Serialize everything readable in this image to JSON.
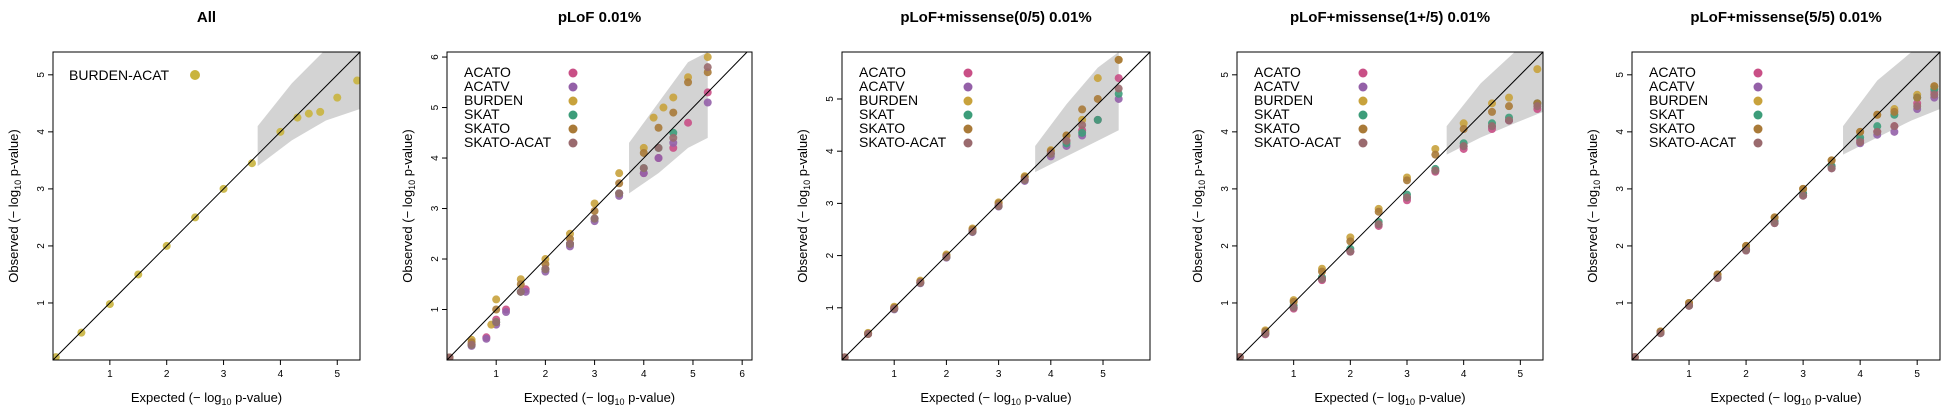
{
  "colors": {
    "ACATO": "#c94f86",
    "ACATV": "#9460a8",
    "BURDEN": "#c8a23c",
    "SKAT": "#3d9d7a",
    "SKATO": "#a97a38",
    "SKATO-ACAT": "#9a6a6e",
    "BURDEN-ACAT": "#c9b43e",
    "ci_band": "#d3d3d3",
    "diagonal": "#000000"
  },
  "chart_data": [
    {
      "type": "scatter",
      "title": "All",
      "xlabel": "Expected (− log10 p-value)",
      "ylabel": "Observed (− log10 p-value)",
      "xlim": [
        0,
        5.4
      ],
      "ylim": [
        0,
        5.4
      ],
      "xticks": [
        1,
        2,
        3,
        4,
        5
      ],
      "yticks": [
        1,
        2,
        3,
        4,
        5
      ],
      "legend": "top-left",
      "ci_band": {
        "x": [
          3.6,
          4.2,
          4.8,
          5.4
        ],
        "lower": [
          3.4,
          3.85,
          4.2,
          4.4
        ],
        "upper": [
          4.1,
          4.85,
          5.45,
          5.4
        ]
      },
      "series": [
        {
          "name": "BURDEN-ACAT",
          "x": [
            0.05,
            0.5,
            1.0,
            1.5,
            2.0,
            2.5,
            3.0,
            3.5,
            4.0,
            4.3,
            4.5,
            4.7,
            5.0,
            5.35
          ],
          "y": [
            0.05,
            0.48,
            0.98,
            1.5,
            2.0,
            2.5,
            3.0,
            3.45,
            4.0,
            4.25,
            4.32,
            4.35,
            4.6,
            4.9
          ]
        }
      ]
    },
    {
      "type": "scatter",
      "title": "pLoF 0.01%",
      "xlabel": "Expected (− log10 p-value)",
      "ylabel": "Observed (− log10 p-value)",
      "xlim": [
        0,
        6.2
      ],
      "ylim": [
        0,
        6.1
      ],
      "xticks": [
        1,
        2,
        3,
        4,
        5,
        6
      ],
      "yticks": [
        1,
        2,
        3,
        4,
        5,
        6
      ],
      "legend": "top-left",
      "ci_band": {
        "x": [
          3.7,
          4.3,
          4.9,
          5.3
        ],
        "lower": [
          3.3,
          3.7,
          4.2,
          4.4
        ],
        "upper": [
          4.3,
          5.1,
          5.9,
          6.1
        ]
      },
      "series": [
        {
          "name": "ACATO",
          "x": [
            0.05,
            0.5,
            0.8,
            1.0,
            1.2,
            1.6,
            2.0,
            2.5,
            3.0,
            3.5,
            4.0,
            4.3,
            4.6,
            4.9,
            5.3
          ],
          "y": [
            0.05,
            0.3,
            0.45,
            0.8,
            1.0,
            1.4,
            1.8,
            2.3,
            2.8,
            3.3,
            3.7,
            4.0,
            4.2,
            4.7,
            5.3
          ]
        },
        {
          "name": "ACATV",
          "x": [
            0.05,
            0.5,
            0.8,
            1.0,
            1.2,
            1.6,
            2.0,
            2.5,
            3.0,
            3.5,
            4.0,
            4.3,
            4.6,
            5.3
          ],
          "y": [
            0.05,
            0.28,
            0.42,
            0.7,
            0.95,
            1.35,
            1.75,
            2.25,
            2.75,
            3.25,
            3.7,
            4.0,
            4.3,
            5.1
          ]
        },
        {
          "name": "BURDEN",
          "x": [
            0.05,
            0.5,
            0.9,
            1.0,
            1.5,
            2.0,
            2.5,
            3.0,
            3.5,
            4.0,
            4.2,
            4.4,
            4.6,
            4.9,
            5.3
          ],
          "y": [
            0.05,
            0.4,
            0.7,
            1.2,
            1.6,
            2.0,
            2.5,
            3.1,
            3.7,
            4.2,
            4.8,
            5.0,
            5.2,
            5.6,
            6.0
          ]
        },
        {
          "name": "SKAT",
          "x": [
            0.05,
            0.5,
            1.0,
            1.5,
            2.0,
            2.5,
            3.0,
            3.5,
            4.0,
            4.3,
            4.6
          ],
          "y": [
            0.05,
            0.3,
            0.75,
            1.35,
            1.8,
            2.3,
            2.8,
            3.3,
            3.8,
            4.2,
            4.5
          ]
        },
        {
          "name": "SKATO",
          "x": [
            0.05,
            0.5,
            1.0,
            1.5,
            2.0,
            2.5,
            3.0,
            3.5,
            4.0,
            4.3,
            4.6,
            4.9,
            5.3
          ],
          "y": [
            0.05,
            0.35,
            1.0,
            1.5,
            1.9,
            2.4,
            2.95,
            3.5,
            4.1,
            4.6,
            4.9,
            5.5,
            5.7
          ]
        },
        {
          "name": "SKATO-ACAT",
          "x": [
            0.05,
            0.5,
            1.0,
            1.5,
            2.0,
            2.5,
            3.0,
            3.5,
            4.0,
            4.3,
            4.6,
            5.3
          ],
          "y": [
            0.05,
            0.3,
            0.75,
            1.35,
            1.8,
            2.3,
            2.8,
            3.3,
            3.8,
            4.2,
            4.4,
            5.8
          ]
        }
      ]
    },
    {
      "type": "scatter",
      "title": "pLoF+missense(0/5) 0.01%",
      "xlabel": "Expected (− log10 p-value)",
      "ylabel": "Observed (− log10 p-value)",
      "xlim": [
        0,
        5.9
      ],
      "ylim": [
        0,
        5.9
      ],
      "xticks": [
        1,
        2,
        3,
        4,
        5
      ],
      "yticks": [
        1,
        2,
        3,
        4,
        5
      ],
      "legend": "top-left",
      "ci_band": {
        "x": [
          3.7,
          4.3,
          4.9,
          5.3
        ],
        "lower": [
          3.6,
          3.9,
          4.2,
          4.4
        ],
        "upper": [
          4.1,
          4.9,
          5.6,
          5.9
        ]
      },
      "series": [
        {
          "name": "ACATO",
          "x": [
            0.05,
            0.5,
            1.0,
            1.5,
            2.0,
            2.5,
            3.0,
            3.5,
            4.0,
            4.3,
            4.6,
            4.9,
            5.3
          ],
          "y": [
            0.05,
            0.5,
            0.98,
            1.48,
            1.97,
            2.46,
            2.95,
            3.45,
            3.95,
            4.2,
            4.4,
            4.6,
            5.4
          ]
        },
        {
          "name": "ACATV",
          "x": [
            0.05,
            0.5,
            1.0,
            1.5,
            2.0,
            2.5,
            3.0,
            3.5,
            4.0,
            4.3,
            4.6,
            5.3
          ],
          "y": [
            0.05,
            0.5,
            0.97,
            1.47,
            1.96,
            2.45,
            2.94,
            3.43,
            3.9,
            4.1,
            4.3,
            5.0
          ]
        },
        {
          "name": "BURDEN",
          "x": [
            0.05,
            0.5,
            1.0,
            1.5,
            2.0,
            2.5,
            3.0,
            3.5,
            4.0,
            4.3,
            4.6,
            4.9,
            5.3
          ],
          "y": [
            0.05,
            0.52,
            1.02,
            1.52,
            2.02,
            2.52,
            3.02,
            3.52,
            4.02,
            4.3,
            4.6,
            5.4,
            5.75
          ]
        },
        {
          "name": "SKAT",
          "x": [
            0.05,
            0.5,
            1.0,
            1.5,
            2.0,
            2.5,
            3.0,
            3.5,
            4.0,
            4.3,
            4.6,
            4.9,
            5.3
          ],
          "y": [
            0.05,
            0.5,
            0.98,
            1.48,
            1.97,
            2.46,
            2.95,
            3.45,
            3.95,
            4.15,
            4.35,
            4.6,
            5.1
          ]
        },
        {
          "name": "SKATO",
          "x": [
            0.05,
            0.5,
            1.0,
            1.5,
            2.0,
            2.5,
            3.0,
            3.5,
            4.0,
            4.3,
            4.6,
            4.9,
            5.3
          ],
          "y": [
            0.05,
            0.5,
            1.0,
            1.5,
            2.0,
            2.5,
            3.0,
            3.5,
            4.0,
            4.3,
            4.8,
            5.0,
            5.75
          ]
        },
        {
          "name": "SKATO-ACAT",
          "x": [
            0.05,
            0.5,
            1.0,
            1.5,
            2.0,
            2.5,
            3.0,
            3.5,
            4.0,
            4.3,
            4.6,
            5.3
          ],
          "y": [
            0.05,
            0.5,
            0.98,
            1.48,
            1.97,
            2.46,
            2.95,
            3.45,
            3.95,
            4.2,
            4.5,
            5.2
          ]
        }
      ]
    },
    {
      "type": "scatter",
      "title": "pLoF+missense(1+/5) 0.01%",
      "xlabel": "Expected (− log10 p-value)",
      "ylabel": "Observed (− log10 p-value)",
      "xlim": [
        0,
        5.4
      ],
      "ylim": [
        0,
        5.4
      ],
      "xticks": [
        1,
        2,
        3,
        4,
        5
      ],
      "yticks": [
        1,
        2,
        3,
        4,
        5
      ],
      "legend": "top-left",
      "ci_band": {
        "x": [
          3.7,
          4.3,
          4.9,
          5.4
        ],
        "lower": [
          3.6,
          3.9,
          4.15,
          4.35
        ],
        "upper": [
          4.1,
          4.85,
          5.4,
          5.4
        ]
      },
      "series": [
        {
          "name": "ACATO",
          "x": [
            0.05,
            0.5,
            1.0,
            1.5,
            2.0,
            2.5,
            3.0,
            3.5,
            4.0,
            4.5,
            4.8,
            5.3
          ],
          "y": [
            0.05,
            0.45,
            0.9,
            1.4,
            1.9,
            2.35,
            2.8,
            3.3,
            3.7,
            4.05,
            4.2,
            4.4
          ]
        },
        {
          "name": "ACATV",
          "x": [
            0.05,
            0.5,
            1.0,
            1.5,
            2.0,
            2.5,
            3.0,
            3.5,
            4.0,
            4.5,
            4.8,
            5.3
          ],
          "y": [
            0.05,
            0.46,
            0.92,
            1.42,
            1.9,
            2.38,
            2.85,
            3.32,
            3.75,
            4.1,
            4.2,
            4.5
          ]
        },
        {
          "name": "BURDEN",
          "x": [
            0.05,
            0.5,
            1.0,
            1.5,
            2.0,
            2.5,
            3.0,
            3.5,
            4.0,
            4.5,
            4.8,
            5.3
          ],
          "y": [
            0.05,
            0.52,
            1.05,
            1.6,
            2.15,
            2.65,
            3.2,
            3.7,
            4.15,
            4.5,
            4.6,
            5.1
          ]
        },
        {
          "name": "SKAT",
          "x": [
            0.05,
            0.5,
            1.0,
            1.5,
            2.0,
            2.5,
            3.0,
            3.5,
            4.0,
            4.5,
            4.8,
            5.3
          ],
          "y": [
            0.05,
            0.48,
            0.95,
            1.45,
            1.95,
            2.42,
            2.9,
            3.35,
            3.8,
            4.15,
            4.25,
            4.5
          ]
        },
        {
          "name": "SKATO",
          "x": [
            0.05,
            0.5,
            1.0,
            1.5,
            2.0,
            2.5,
            3.0,
            3.5,
            4.0,
            4.5,
            4.8,
            5.3
          ],
          "y": [
            0.05,
            0.5,
            1.02,
            1.55,
            2.08,
            2.6,
            3.15,
            3.6,
            4.05,
            4.35,
            4.45,
            4.5
          ]
        },
        {
          "name": "SKATO-ACAT",
          "x": [
            0.05,
            0.5,
            1.0,
            1.5,
            2.0,
            2.5,
            3.0,
            3.5,
            4.0,
            4.5,
            4.8,
            5.3
          ],
          "y": [
            0.05,
            0.46,
            0.92,
            1.42,
            1.9,
            2.38,
            2.85,
            3.32,
            3.75,
            4.1,
            4.2,
            4.45
          ]
        }
      ]
    },
    {
      "type": "scatter",
      "title": "pLoF+missense(5/5) 0.01%",
      "xlabel": "Expected (− log10 p-value)",
      "ylabel": "Observed (− log10 p-value)",
      "xlim": [
        0,
        5.4
      ],
      "ylim": [
        0,
        5.4
      ],
      "xticks": [
        1,
        2,
        3,
        4,
        5
      ],
      "yticks": [
        1,
        2,
        3,
        4,
        5
      ],
      "legend": "top-left",
      "ci_band": {
        "x": [
          3.7,
          4.3,
          4.9,
          5.4
        ],
        "lower": [
          3.6,
          3.9,
          4.2,
          4.4
        ],
        "upper": [
          4.1,
          4.9,
          5.4,
          5.4
        ]
      },
      "series": [
        {
          "name": "ACATO",
          "x": [
            0.05,
            0.5,
            1.0,
            1.5,
            2.0,
            2.5,
            3.0,
            3.5,
            4.0,
            4.3,
            4.6,
            5.0,
            5.3
          ],
          "y": [
            0.05,
            0.48,
            0.96,
            1.45,
            1.94,
            2.43,
            2.92,
            3.4,
            3.85,
            4.0,
            4.1,
            4.5,
            4.7
          ]
        },
        {
          "name": "ACATV",
          "x": [
            0.05,
            0.5,
            1.0,
            1.5,
            2.0,
            2.5,
            3.0,
            3.5,
            4.0,
            4.3,
            4.6,
            5.0,
            5.3
          ],
          "y": [
            0.05,
            0.47,
            0.95,
            1.44,
            1.92,
            2.4,
            2.88,
            3.36,
            3.8,
            3.95,
            4.0,
            4.4,
            4.6
          ]
        },
        {
          "name": "BURDEN",
          "x": [
            0.05,
            0.5,
            1.0,
            1.5,
            2.0,
            2.5,
            3.0,
            3.5,
            4.0,
            4.3,
            4.6,
            5.0,
            5.3
          ],
          "y": [
            0.05,
            0.5,
            1.0,
            1.5,
            2.0,
            2.5,
            3.0,
            3.5,
            4.0,
            4.3,
            4.4,
            4.65,
            4.8
          ]
        },
        {
          "name": "SKAT",
          "x": [
            0.05,
            0.5,
            1.0,
            1.5,
            2.0,
            2.5,
            3.0,
            3.5,
            4.0,
            4.3,
            4.6,
            5.0,
            5.3
          ],
          "y": [
            0.05,
            0.48,
            0.96,
            1.45,
            1.94,
            2.43,
            2.92,
            3.4,
            3.9,
            4.1,
            4.3,
            4.6,
            4.75
          ]
        },
        {
          "name": "SKATO",
          "x": [
            0.05,
            0.5,
            1.0,
            1.5,
            2.0,
            2.5,
            3.0,
            3.5,
            4.0,
            4.3,
            4.6,
            5.0,
            5.3
          ],
          "y": [
            0.05,
            0.5,
            1.0,
            1.5,
            2.0,
            2.5,
            3.0,
            3.5,
            4.0,
            4.3,
            4.35,
            4.6,
            4.8
          ]
        },
        {
          "name": "SKATO-ACAT",
          "x": [
            0.05,
            0.5,
            1.0,
            1.5,
            2.0,
            2.5,
            3.0,
            3.5,
            4.0,
            4.3,
            4.6,
            5.0,
            5.3
          ],
          "y": [
            0.05,
            0.47,
            0.95,
            1.44,
            1.92,
            2.4,
            2.88,
            3.36,
            3.82,
            4.0,
            4.1,
            4.45,
            4.65
          ]
        }
      ]
    }
  ]
}
